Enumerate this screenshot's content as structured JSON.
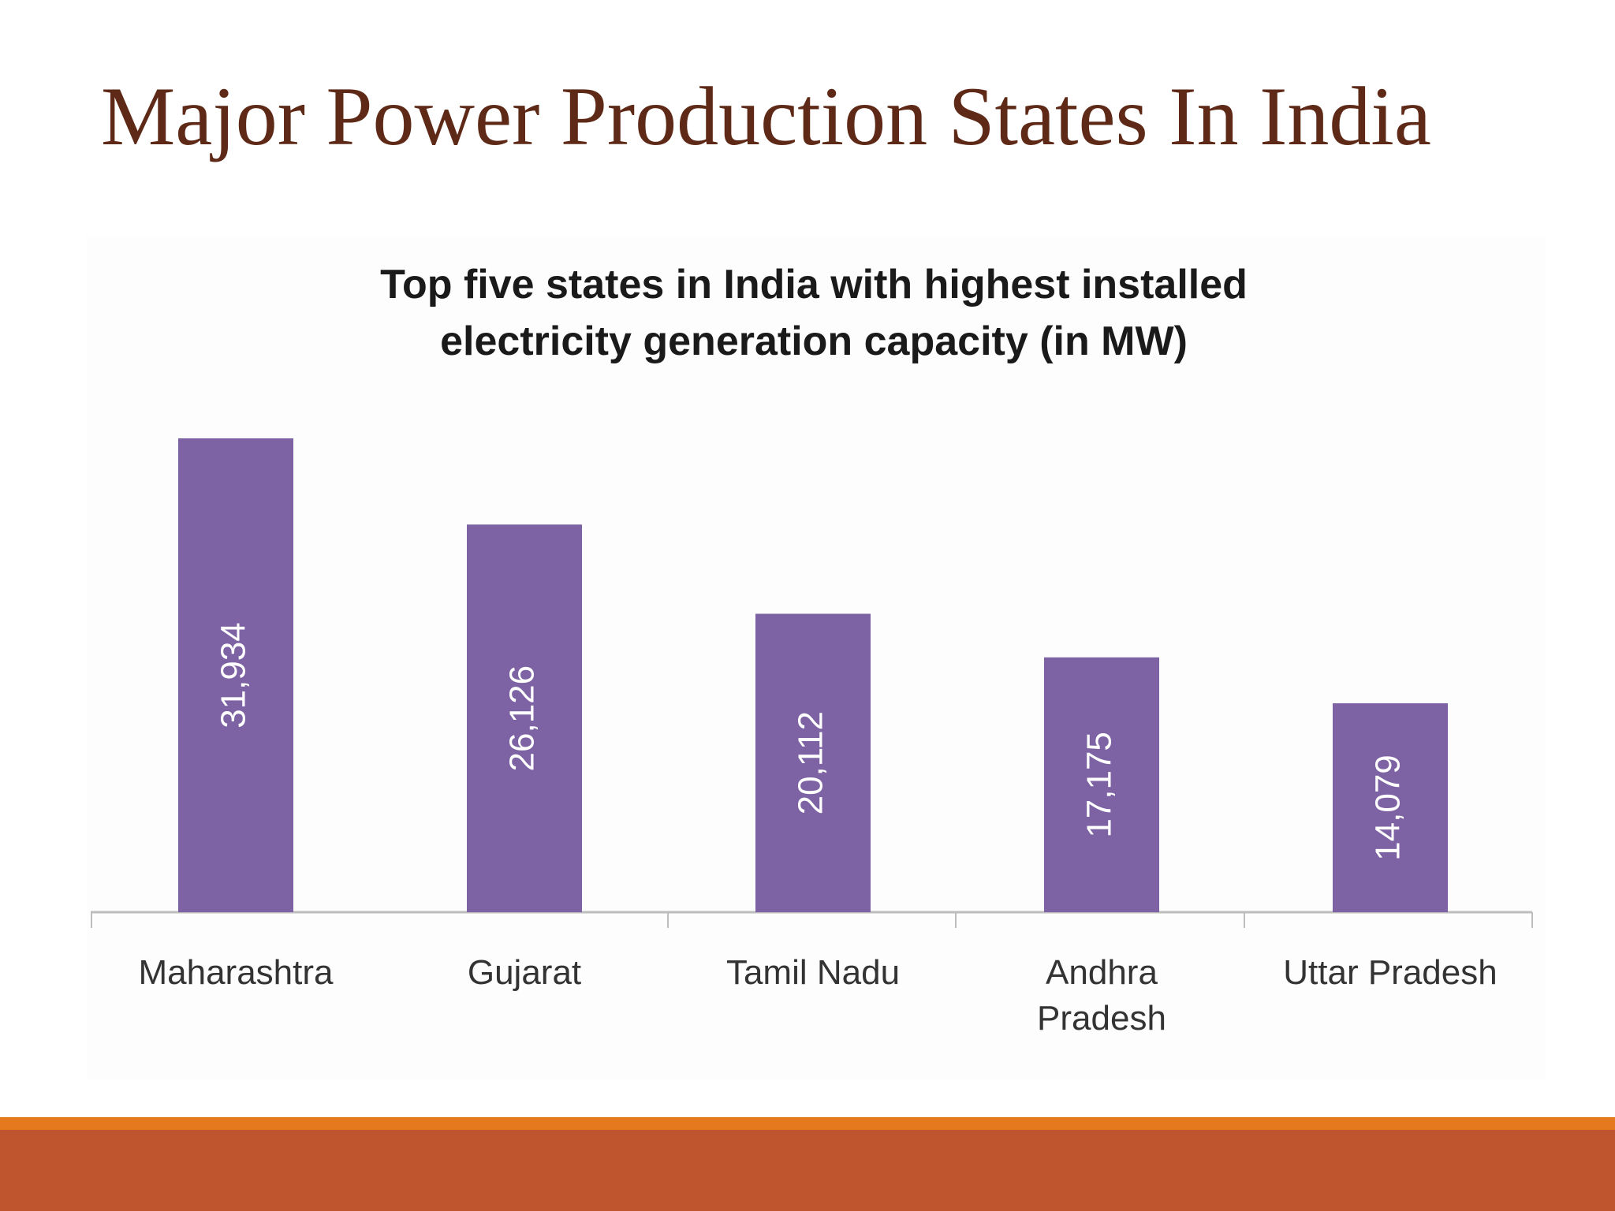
{
  "slide_title": "Major Power Production States In India",
  "chart_data": {
    "type": "bar",
    "title": [
      "Top five states in India with highest installed",
      "electricity generation capacity (in MW)"
    ],
    "categories": [
      "Maharashtra",
      "Gujarat",
      "Tamil Nadu",
      "Andhra Pradesh",
      "Uttar Pradesh"
    ],
    "values": [
      31934,
      26126,
      20112,
      17175,
      14079
    ],
    "value_labels": [
      "31,934",
      "26,126",
      "20,112",
      "17,175",
      "14,079"
    ],
    "color": "#7e63a4"
  }
}
